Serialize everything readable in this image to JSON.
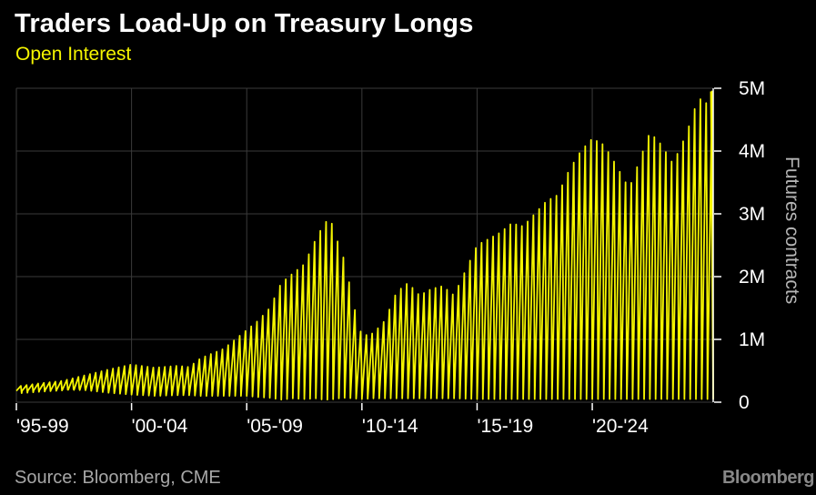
{
  "title": "Traders Load-Up on Treasury Longs",
  "subtitle": "Open Interest",
  "source": "Source: Bloomberg, CME",
  "brand": "Bloomberg",
  "colors": {
    "background": "#000000",
    "series": "#f5f500",
    "grid": "#3a3a3a",
    "title": "#ffffff",
    "subtitle": "#f5f500"
  },
  "chart_data": {
    "type": "area",
    "title": "Traders Load-Up on Treasury Longs",
    "subtitle": "Open Interest",
    "ylabel": "Futures contracts",
    "ylim": [
      0,
      5000000
    ],
    "y_ticks": [
      {
        "value": 0,
        "label": "0"
      },
      {
        "value": 1000000,
        "label": "1M"
      },
      {
        "value": 2000000,
        "label": "2M"
      },
      {
        "value": 3000000,
        "label": "3M"
      },
      {
        "value": 4000000,
        "label": "4M"
      },
      {
        "value": 5000000,
        "label": "5M"
      }
    ],
    "xlim": [
      1995.0,
      2025.25
    ],
    "x_ticks": [
      {
        "value": 1995,
        "label": "'95-99"
      },
      {
        "value": 2000,
        "label": "'00-'04"
      },
      {
        "value": 2005,
        "label": "'05-'09"
      },
      {
        "value": 2010,
        "label": "'10-'14"
      },
      {
        "value": 2015,
        "label": "'15-'19"
      },
      {
        "value": 2020,
        "label": "'20-'24"
      }
    ],
    "grid": true,
    "pattern": "quarterly contract-roll cycle: open interest peaks before each roll then drops near the baseline",
    "series": [
      {
        "x": [
          1995.0,
          1996.0,
          1997.0,
          1998.0,
          1999.0,
          2000.0,
          2001.0,
          2002.0,
          2002.5,
          2003.0,
          2004.0,
          2005.0,
          2005.5,
          2006.0,
          2006.5,
          2007.0,
          2007.5,
          2008.0,
          2008.3,
          2008.6,
          2009.0,
          2009.3,
          2009.6,
          2010.0,
          2010.5,
          2011.0,
          2011.5,
          2012.0,
          2012.5,
          2013.0,
          2013.5,
          2014.0,
          2015.0,
          2016.0,
          2016.5,
          2017.0,
          2017.5,
          2018.0,
          2018.5,
          2019.0,
          2019.5,
          2020.0,
          2020.5,
          2021.0,
          2021.3,
          2021.6,
          2022.0,
          2022.5,
          2023.0,
          2023.5,
          2024.0,
          2024.3,
          2024.6,
          2025.0,
          2025.15
        ],
        "peak": [
          250000,
          300000,
          340000,
          430000,
          520000,
          600000,
          550000,
          580000,
          560000,
          700000,
          850000,
          1150000,
          1300000,
          1500000,
          1900000,
          2050000,
          2200000,
          2600000,
          2800000,
          2950000,
          2500000,
          2200000,
          1600000,
          1050000,
          1100000,
          1300000,
          1750000,
          1900000,
          1700000,
          1800000,
          1850000,
          1700000,
          2500000,
          2700000,
          2850000,
          2800000,
          3000000,
          3200000,
          3300000,
          3700000,
          4000000,
          4200000,
          4100000,
          3800000,
          3600000,
          3400000,
          3800000,
          4300000,
          4100000,
          3800000,
          4200000,
          4500000,
          4850000,
          4750000,
          4950000
        ],
        "trough": [
          180000,
          190000,
          200000,
          190000,
          150000,
          120000,
          100000,
          110000,
          110000,
          100000,
          100000,
          100000,
          80000,
          70000,
          40000,
          60000,
          50000,
          60000,
          40000,
          40000,
          60000,
          70000,
          60000,
          50000,
          60000,
          60000,
          60000,
          60000,
          60000,
          60000,
          60000,
          60000,
          50000,
          50000,
          50000,
          50000,
          50000,
          50000,
          50000,
          50000,
          50000,
          50000,
          50000,
          50000,
          50000,
          50000,
          50000,
          50000,
          50000,
          50000,
          50000,
          50000,
          50000,
          50000,
          50000
        ]
      }
    ]
  }
}
